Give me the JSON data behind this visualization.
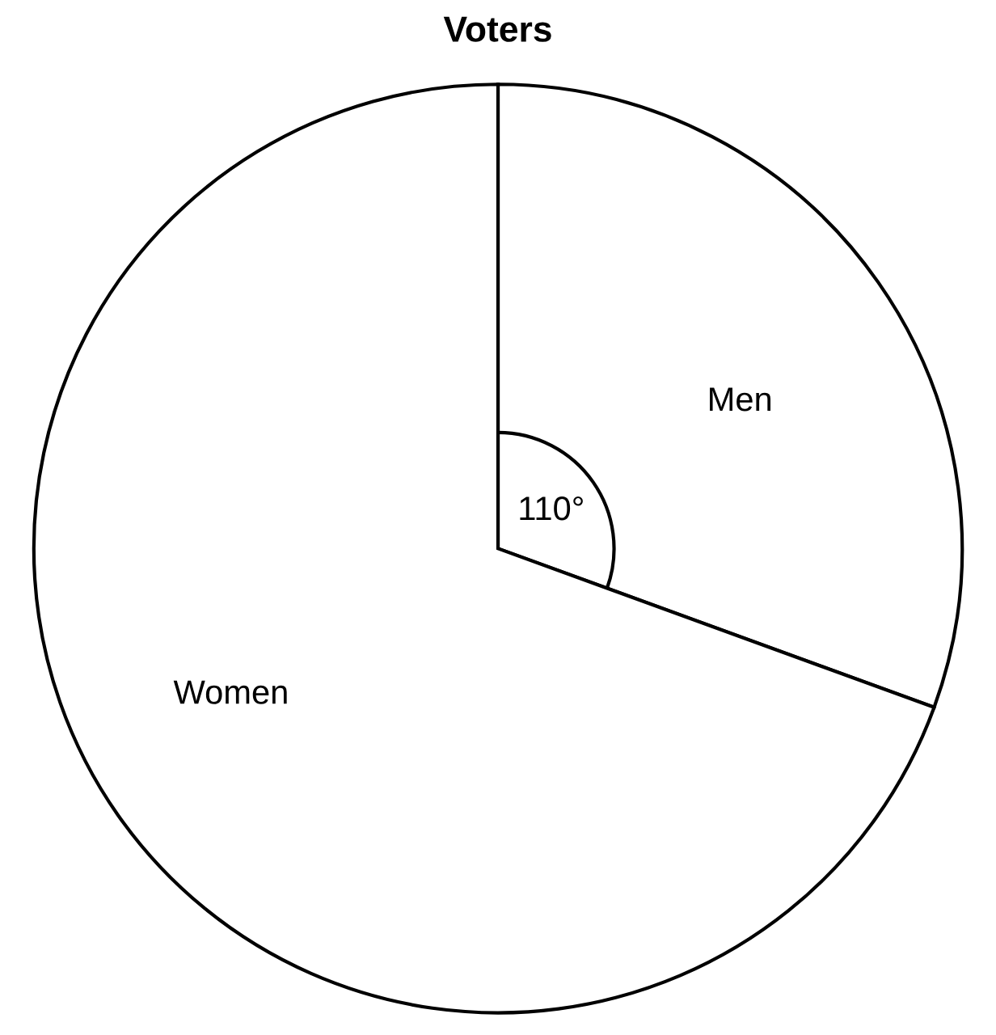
{
  "chart_data": {
    "type": "pie",
    "title": "Voters",
    "categories": [
      "Men",
      "Women"
    ],
    "values": [
      110,
      250
    ],
    "colors": [
      "#ffffff",
      "#ffffff"
    ],
    "value_labels": [
      "110°",
      null
    ]
  }
}
